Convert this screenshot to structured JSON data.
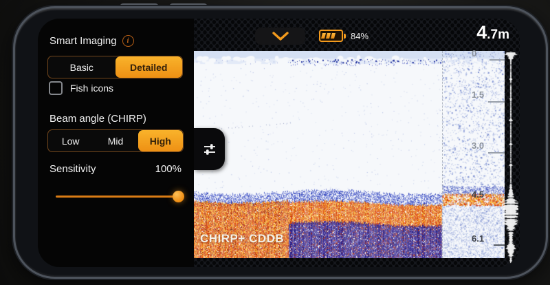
{
  "top_bar": {
    "collapse_chevron_icon": "chevron-down",
    "battery": {
      "icon": "battery-icon",
      "percent": "84%"
    }
  },
  "depth_readout": {
    "big": "4",
    "small": ".7m"
  },
  "settings_panel": {
    "smart_imaging": {
      "label": "Smart Imaging",
      "info_icon": "info-circle-icon",
      "options": [
        "Basic",
        "Detailed"
      ],
      "selected": "Detailed"
    },
    "fish_icons": {
      "label": "Fish icons",
      "checked": false
    },
    "beam_angle": {
      "label": "Beam angle (CHIRP)",
      "options": [
        "Low",
        "Mid",
        "High"
      ],
      "selected": "High"
    },
    "sensitivity": {
      "label": "Sensitivity",
      "value": "100%",
      "percent": 100
    }
  },
  "sonar": {
    "mode_label": "CHIRP+ CDDB",
    "depth_scale_labels": [
      "0",
      "1.5",
      "3.0",
      "4.5",
      "6.1"
    ],
    "flasher_icon": "echo-amplitude-waveform"
  },
  "colors": {
    "accent_orange": "#f49b1d",
    "orange_deep": "#e8590c",
    "orange_mid": "#f59e24",
    "yellow": "#ffcf42",
    "red": "#d23209",
    "dark_red": "#a8290f",
    "sonar_blue": "#2336b4",
    "sonar_blue_lt": "#5b6cd6",
    "sonar_blue_pale": "#8694e0",
    "purple": "#2a1e86",
    "purple_lt": "#41309f",
    "purple_dk": "#1a1270",
    "violet": "#5b3fb0",
    "surface_band": "#d5e0f3",
    "clutter_blue": "#1e2f9e",
    "speckle_lt": "#aab8e2"
  }
}
